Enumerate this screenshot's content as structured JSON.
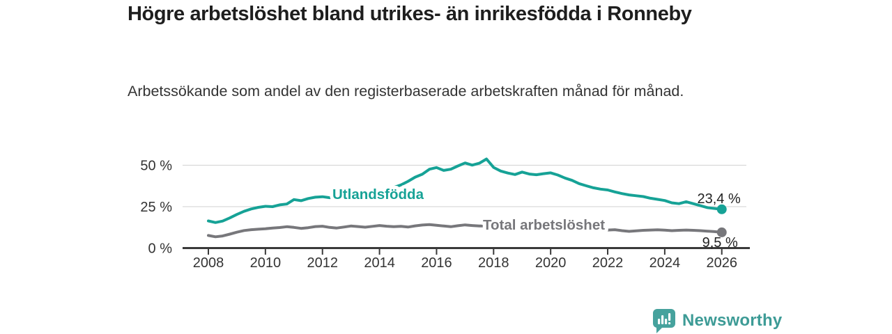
{
  "header": {
    "title": "Högre arbetslöshet bland utrikes- än inrikesfödda i Ronneby",
    "subtitle": "Arbetssökande som andel av den registerbaserade arbetskraften månad för månad."
  },
  "chart_data": {
    "type": "line",
    "title": "Högre arbetslöshet bland utrikes- än inrikesfödda i Ronneby",
    "subtitle": "Arbetssökande som andel av den registerbaserade arbetskraften månad för månad.",
    "unit": "%",
    "grid": "horizontal-only",
    "legend_position": "inline-labels-on-lines",
    "x_axis": {
      "range": [
        2007.8,
        2027.0
      ],
      "ticks": [
        2008,
        2010,
        2012,
        2014,
        2016,
        2018,
        2020,
        2022,
        2024,
        2026
      ],
      "tick_labels": [
        "2008",
        "2010",
        "2012",
        "2014",
        "2016",
        "2018",
        "2020",
        "2022",
        "2024",
        "2026"
      ]
    },
    "y_axis": {
      "range": [
        0,
        57
      ],
      "ticks": [
        0,
        25,
        50
      ],
      "tick_labels": [
        "0 %",
        "25 %",
        "50 %"
      ]
    },
    "colors": {
      "grid": "#d9d9d9",
      "axis": "#3a3a3a",
      "tick_text": "#333333",
      "value_text": "#222222"
    },
    "series": [
      {
        "name": "Utlandsfödda",
        "color": "#16a296",
        "end_label": "23,4 %",
        "end_value": 23.4,
        "points": [
          [
            2008.0,
            16.4
          ],
          [
            2008.25,
            15.4
          ],
          [
            2008.5,
            16.3
          ],
          [
            2008.75,
            18.2
          ],
          [
            2009.0,
            20.3
          ],
          [
            2009.25,
            22.2
          ],
          [
            2009.5,
            23.6
          ],
          [
            2009.75,
            24.6
          ],
          [
            2010.0,
            25.2
          ],
          [
            2010.25,
            25.0
          ],
          [
            2010.5,
            26.1
          ],
          [
            2010.75,
            26.6
          ],
          [
            2011.0,
            29.3
          ],
          [
            2011.25,
            28.6
          ],
          [
            2011.5,
            29.9
          ],
          [
            2011.75,
            30.7
          ],
          [
            2012.0,
            31.0
          ],
          [
            2012.25,
            30.4
          ],
          [
            2012.5,
            30.9
          ],
          [
            2012.75,
            31.3
          ],
          [
            2013.0,
            31.9
          ],
          [
            2013.25,
            32.6
          ],
          [
            2013.5,
            33.4
          ],
          [
            2013.75,
            34.1
          ],
          [
            2014.0,
            34.9
          ],
          [
            2014.25,
            35.7
          ],
          [
            2014.5,
            36.6
          ],
          [
            2014.75,
            38.1
          ],
          [
            2015.0,
            40.3
          ],
          [
            2015.25,
            42.8
          ],
          [
            2015.5,
            44.6
          ],
          [
            2015.75,
            47.6
          ],
          [
            2016.0,
            48.6
          ],
          [
            2016.25,
            46.9
          ],
          [
            2016.5,
            47.6
          ],
          [
            2016.75,
            49.6
          ],
          [
            2017.0,
            51.4
          ],
          [
            2017.25,
            50.1
          ],
          [
            2017.5,
            51.2
          ],
          [
            2017.75,
            53.8
          ],
          [
            2018.0,
            48.7
          ],
          [
            2018.25,
            46.5
          ],
          [
            2018.5,
            45.3
          ],
          [
            2018.75,
            44.4
          ],
          [
            2019.0,
            45.9
          ],
          [
            2019.25,
            44.7
          ],
          [
            2019.5,
            44.3
          ],
          [
            2019.75,
            44.9
          ],
          [
            2020.0,
            45.4
          ],
          [
            2020.25,
            44.1
          ],
          [
            2020.5,
            42.3
          ],
          [
            2020.75,
            40.9
          ],
          [
            2021.0,
            38.9
          ],
          [
            2021.25,
            37.6
          ],
          [
            2021.5,
            36.4
          ],
          [
            2021.75,
            35.6
          ],
          [
            2022.0,
            35.1
          ],
          [
            2022.25,
            33.9
          ],
          [
            2022.5,
            32.9
          ],
          [
            2022.75,
            32.1
          ],
          [
            2023.0,
            31.6
          ],
          [
            2023.25,
            31.1
          ],
          [
            2023.5,
            30.1
          ],
          [
            2023.75,
            29.4
          ],
          [
            2024.0,
            28.7
          ],
          [
            2024.25,
            27.3
          ],
          [
            2024.5,
            26.8
          ],
          [
            2024.75,
            28.0
          ],
          [
            2025.0,
            26.8
          ],
          [
            2025.25,
            25.6
          ],
          [
            2025.5,
            24.4
          ],
          [
            2025.75,
            23.9
          ],
          [
            2026.0,
            23.4
          ]
        ]
      },
      {
        "name": "Total arbetslöshet",
        "color": "#77777b",
        "end_label": "9,5 %",
        "end_value": 9.5,
        "points": [
          [
            2008.0,
            7.6
          ],
          [
            2008.25,
            6.8
          ],
          [
            2008.5,
            7.3
          ],
          [
            2008.75,
            8.4
          ],
          [
            2009.0,
            9.6
          ],
          [
            2009.25,
            10.6
          ],
          [
            2009.5,
            11.1
          ],
          [
            2009.75,
            11.4
          ],
          [
            2010.0,
            11.7
          ],
          [
            2010.25,
            12.1
          ],
          [
            2010.5,
            12.4
          ],
          [
            2010.75,
            12.9
          ],
          [
            2011.0,
            12.5
          ],
          [
            2011.25,
            11.9
          ],
          [
            2011.5,
            12.3
          ],
          [
            2011.75,
            13.0
          ],
          [
            2012.0,
            13.2
          ],
          [
            2012.25,
            12.5
          ],
          [
            2012.5,
            12.1
          ],
          [
            2012.75,
            12.7
          ],
          [
            2013.0,
            13.3
          ],
          [
            2013.25,
            13.0
          ],
          [
            2013.5,
            12.6
          ],
          [
            2013.75,
            13.1
          ],
          [
            2014.0,
            13.6
          ],
          [
            2014.25,
            13.2
          ],
          [
            2014.5,
            12.9
          ],
          [
            2014.75,
            13.1
          ],
          [
            2015.0,
            12.7
          ],
          [
            2015.25,
            13.4
          ],
          [
            2015.5,
            13.9
          ],
          [
            2015.75,
            14.2
          ],
          [
            2016.0,
            13.8
          ],
          [
            2016.25,
            13.3
          ],
          [
            2016.5,
            12.9
          ],
          [
            2016.75,
            13.5
          ],
          [
            2017.0,
            14.0
          ],
          [
            2017.25,
            13.6
          ],
          [
            2017.5,
            13.3
          ],
          [
            2017.75,
            13.4
          ],
          [
            2018.0,
            12.9
          ],
          [
            2018.25,
            12.3
          ],
          [
            2018.5,
            11.9
          ],
          [
            2018.75,
            11.6
          ],
          [
            2019.0,
            11.3
          ],
          [
            2019.25,
            11.1
          ],
          [
            2019.5,
            11.4
          ],
          [
            2019.75,
            11.7
          ],
          [
            2020.0,
            12.0
          ],
          [
            2020.25,
            12.9
          ],
          [
            2020.5,
            13.2
          ],
          [
            2020.75,
            12.8
          ],
          [
            2021.0,
            12.4
          ],
          [
            2021.25,
            11.9
          ],
          [
            2021.5,
            11.5
          ],
          [
            2021.75,
            11.1
          ],
          [
            2022.0,
            10.9
          ],
          [
            2022.25,
            11.1
          ],
          [
            2022.5,
            10.5
          ],
          [
            2022.75,
            10.1
          ],
          [
            2023.0,
            10.4
          ],
          [
            2023.25,
            10.7
          ],
          [
            2023.5,
            10.9
          ],
          [
            2023.75,
            11.0
          ],
          [
            2024.0,
            10.8
          ],
          [
            2024.25,
            10.5
          ],
          [
            2024.5,
            10.7
          ],
          [
            2024.75,
            10.9
          ],
          [
            2025.0,
            10.7
          ],
          [
            2025.25,
            10.5
          ],
          [
            2025.5,
            10.2
          ],
          [
            2025.75,
            9.9
          ],
          [
            2026.0,
            9.5
          ]
        ]
      }
    ]
  },
  "footer": {
    "brand": "Newsworthy",
    "logo_icon": "bar-chart-speech-bubble-icon",
    "brand_color": "#3d9b96",
    "icon_color": "#46a29d"
  }
}
